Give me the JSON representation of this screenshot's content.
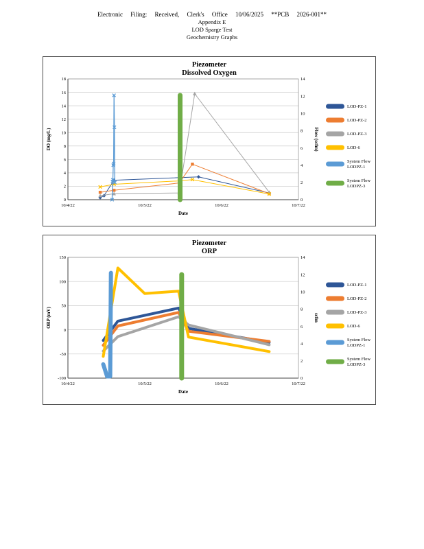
{
  "header": {
    "line1": "Electronic Filing: Received, Clerk's Office 10/06/2025 **PCB 2026-001**",
    "line2": "Appendix E",
    "line3": "LOD Sparge Test",
    "line4": "Geochemistry Graphs"
  },
  "chart_data": [
    {
      "id": "do-chart",
      "type": "line",
      "title": "Piezometer",
      "subtitle": "Dissolved Oxygen",
      "xlabel": "Date",
      "ylabel": "DO (mg/L)",
      "y2label": "Flow (scfm)",
      "xlim": [
        0,
        3
      ],
      "ylim": [
        0,
        18
      ],
      "ytick_step": 2,
      "y2lim": [
        0,
        14
      ],
      "y2tick_step": 2,
      "grid": true,
      "legend_position": "right",
      "xticks": [
        {
          "x": 0,
          "label": "10/4/22"
        },
        {
          "x": 1,
          "label": "10/5/22"
        },
        {
          "x": 2,
          "label": "10/6/22"
        },
        {
          "x": 3,
          "label": "10/7/22"
        }
      ],
      "series": [
        {
          "name": "LOD-PZ-1",
          "color": "#2E5697",
          "axis": "left",
          "width": 1,
          "marker": "diamond",
          "points": [
            [
              0.42,
              0.3
            ],
            [
              0.47,
              0.6
            ],
            [
              0.6,
              2.9
            ],
            [
              1.7,
              3.4
            ],
            [
              2.62,
              1.0
            ]
          ]
        },
        {
          "name": "LOD-PZ-2",
          "color": "#ED7D31",
          "axis": "left",
          "width": 1,
          "marker": "square",
          "points": [
            [
              0.42,
              1.1
            ],
            [
              0.6,
              1.4
            ],
            [
              1.45,
              2.5
            ],
            [
              1.62,
              5.3
            ],
            [
              2.62,
              0.9
            ]
          ]
        },
        {
          "name": "LOD-PZ-3",
          "color": "#A5A5A5",
          "axis": "left",
          "width": 1,
          "marker": "triangle",
          "points": [
            [
              0.42,
              0.6
            ],
            [
              0.6,
              0.9
            ],
            [
              1.45,
              1.0
            ],
            [
              1.65,
              15.8
            ],
            [
              2.62,
              1.1
            ]
          ]
        },
        {
          "name": "LOD-6",
          "color": "#FFC000",
          "axis": "left",
          "width": 1,
          "marker": "x",
          "points": [
            [
              0.42,
              1.9
            ],
            [
              0.6,
              2.3
            ],
            [
              1.45,
              2.8
            ],
            [
              1.62,
              3.0
            ],
            [
              2.62,
              0.85
            ]
          ]
        },
        {
          "name": "System Flow\nLODPZ-1",
          "color": "#5B9BD5",
          "axis": "right",
          "width": 1.3,
          "marker": "x",
          "points": [
            [
              0.575,
              0
            ],
            [
              0.58,
              2.1
            ],
            [
              0.585,
              2.3
            ],
            [
              0.59,
              4.0
            ],
            [
              0.595,
              4.2
            ],
            [
              0.6,
              12.1
            ],
            [
              0.605,
              8.4
            ],
            [
              0.61,
              2.0
            ]
          ]
        },
        {
          "name": "System Flow\nLODPZ-3",
          "color": "#70AD47",
          "axis": "right",
          "width": 7,
          "marker": "none",
          "points": [
            [
              1.46,
              0
            ],
            [
              1.46,
              12.1
            ]
          ]
        }
      ]
    },
    {
      "id": "orp-chart",
      "type": "line",
      "title": "Piezometer",
      "subtitle": "ORP",
      "xlabel": "Date",
      "ylabel": "ORP (mV)",
      "y2label": "scfm",
      "xlim": [
        0,
        3
      ],
      "ylim": [
        -100,
        150
      ],
      "ytick_step": 50,
      "y2lim": [
        0,
        14
      ],
      "y2tick_step": 2,
      "grid": true,
      "legend_position": "right",
      "xticks": [
        {
          "x": 0,
          "label": "10/4/22"
        },
        {
          "x": 1,
          "label": "10/5/22"
        },
        {
          "x": 2,
          "label": "10/6/22"
        },
        {
          "x": 3,
          "label": "10/7/22"
        }
      ],
      "series": [
        {
          "name": "LOD-PZ-1",
          "color": "#2E5697",
          "axis": "left",
          "width": 4,
          "marker": "none",
          "points": [
            [
              0.46,
              -22
            ],
            [
              0.65,
              18
            ],
            [
              1.44,
              45
            ],
            [
              1.57,
              3
            ],
            [
              2.62,
              -26
            ]
          ]
        },
        {
          "name": "LOD-PZ-2",
          "color": "#ED7D31",
          "axis": "left",
          "width": 4,
          "marker": "none",
          "points": [
            [
              0.46,
              -32
            ],
            [
              0.65,
              8
            ],
            [
              1.44,
              36
            ],
            [
              1.57,
              -3
            ],
            [
              2.62,
              -24
            ]
          ]
        },
        {
          "name": "LOD-PZ-3",
          "color": "#A5A5A5",
          "axis": "left",
          "width": 4,
          "marker": "none",
          "points": [
            [
              0.46,
              -44
            ],
            [
              0.65,
              -14
            ],
            [
              1.44,
              27
            ],
            [
              1.57,
              10
            ],
            [
              2.62,
              -31
            ]
          ]
        },
        {
          "name": "LOD-6",
          "color": "#FFC000",
          "axis": "left",
          "width": 4,
          "marker": "none",
          "points": [
            [
              0.46,
              -55
            ],
            [
              0.65,
              128
            ],
            [
              1.0,
              75
            ],
            [
              1.44,
              80
            ],
            [
              1.57,
              -15
            ],
            [
              2.62,
              -45
            ]
          ]
        },
        {
          "name": "System Flow\nLODPZ-1",
          "color": "#5B9BD5",
          "axis": "right",
          "width": 6,
          "marker": "none",
          "points": [
            [
              0.46,
              1.6
            ],
            [
              0.51,
              0.2
            ],
            [
              0.55,
              0.2
            ],
            [
              0.56,
              12.2
            ]
          ]
        },
        {
          "name": "System Flow\nLODPZ-3",
          "color": "#70AD47",
          "axis": "right",
          "width": 7,
          "marker": "none",
          "points": [
            [
              1.48,
              0
            ],
            [
              1.48,
              12.0
            ]
          ]
        }
      ]
    }
  ]
}
